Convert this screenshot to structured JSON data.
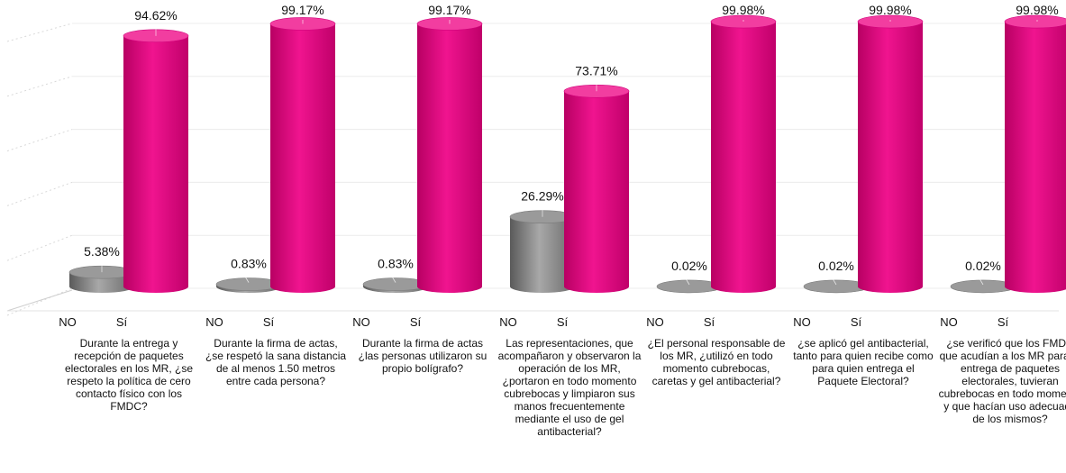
{
  "chart_data": {
    "type": "bar",
    "categories": [
      "Durante la entrega y recepción de paquetes electorales en los MR, ¿se respeto la política de cero contacto físico con los FMDC?",
      "Durante la firma de actas, ¿se respetó la sana distancia de al menos 1.50 metros entre cada persona?",
      "Durante la firma de actas ¿las personas utilizaron su propio bolígrafo?",
      "Las representaciones, que acompañaron y observaron la operación de los MR, ¿portaron en todo momento cubrebocas y limpiaron sus manos frecuentemente mediante el uso de gel antibacterial?",
      "¿El personal responsable de los MR, ¿utilizó en todo momento cubrebocas, caretas y gel antibacterial?",
      "¿se aplicó gel antibacterial, tanto para quien recibe como para quien entrega el Paquete Electoral?",
      "¿se verificó que los FMDC que acudían a los MR para la entrega de paquetes electorales, tuvieran cubrebocas en todo momento y que hacían uso adecuado de los mismos?"
    ],
    "series": [
      {
        "name": "NO",
        "color": "#808080",
        "values": [
          5.38,
          0.83,
          0.83,
          26.29,
          0.02,
          0.02,
          0.02
        ],
        "labels": [
          "5.38%",
          "0.83%",
          "0.83%",
          "26.29%",
          "0.02%",
          "0.02%",
          "0.02%"
        ]
      },
      {
        "name": "Sí",
        "color": "#e6007e",
        "values": [
          94.62,
          99.17,
          99.17,
          73.71,
          99.98,
          99.98,
          99.98
        ],
        "labels": [
          "94.62%",
          "99.17%",
          "99.17%",
          "73.71%",
          "99.98%",
          "99.98%",
          "99.98%"
        ]
      }
    ],
    "ylim": [
      0,
      100
    ],
    "grid": true,
    "legend": "none",
    "bar_shape": "3d-cylinder"
  }
}
